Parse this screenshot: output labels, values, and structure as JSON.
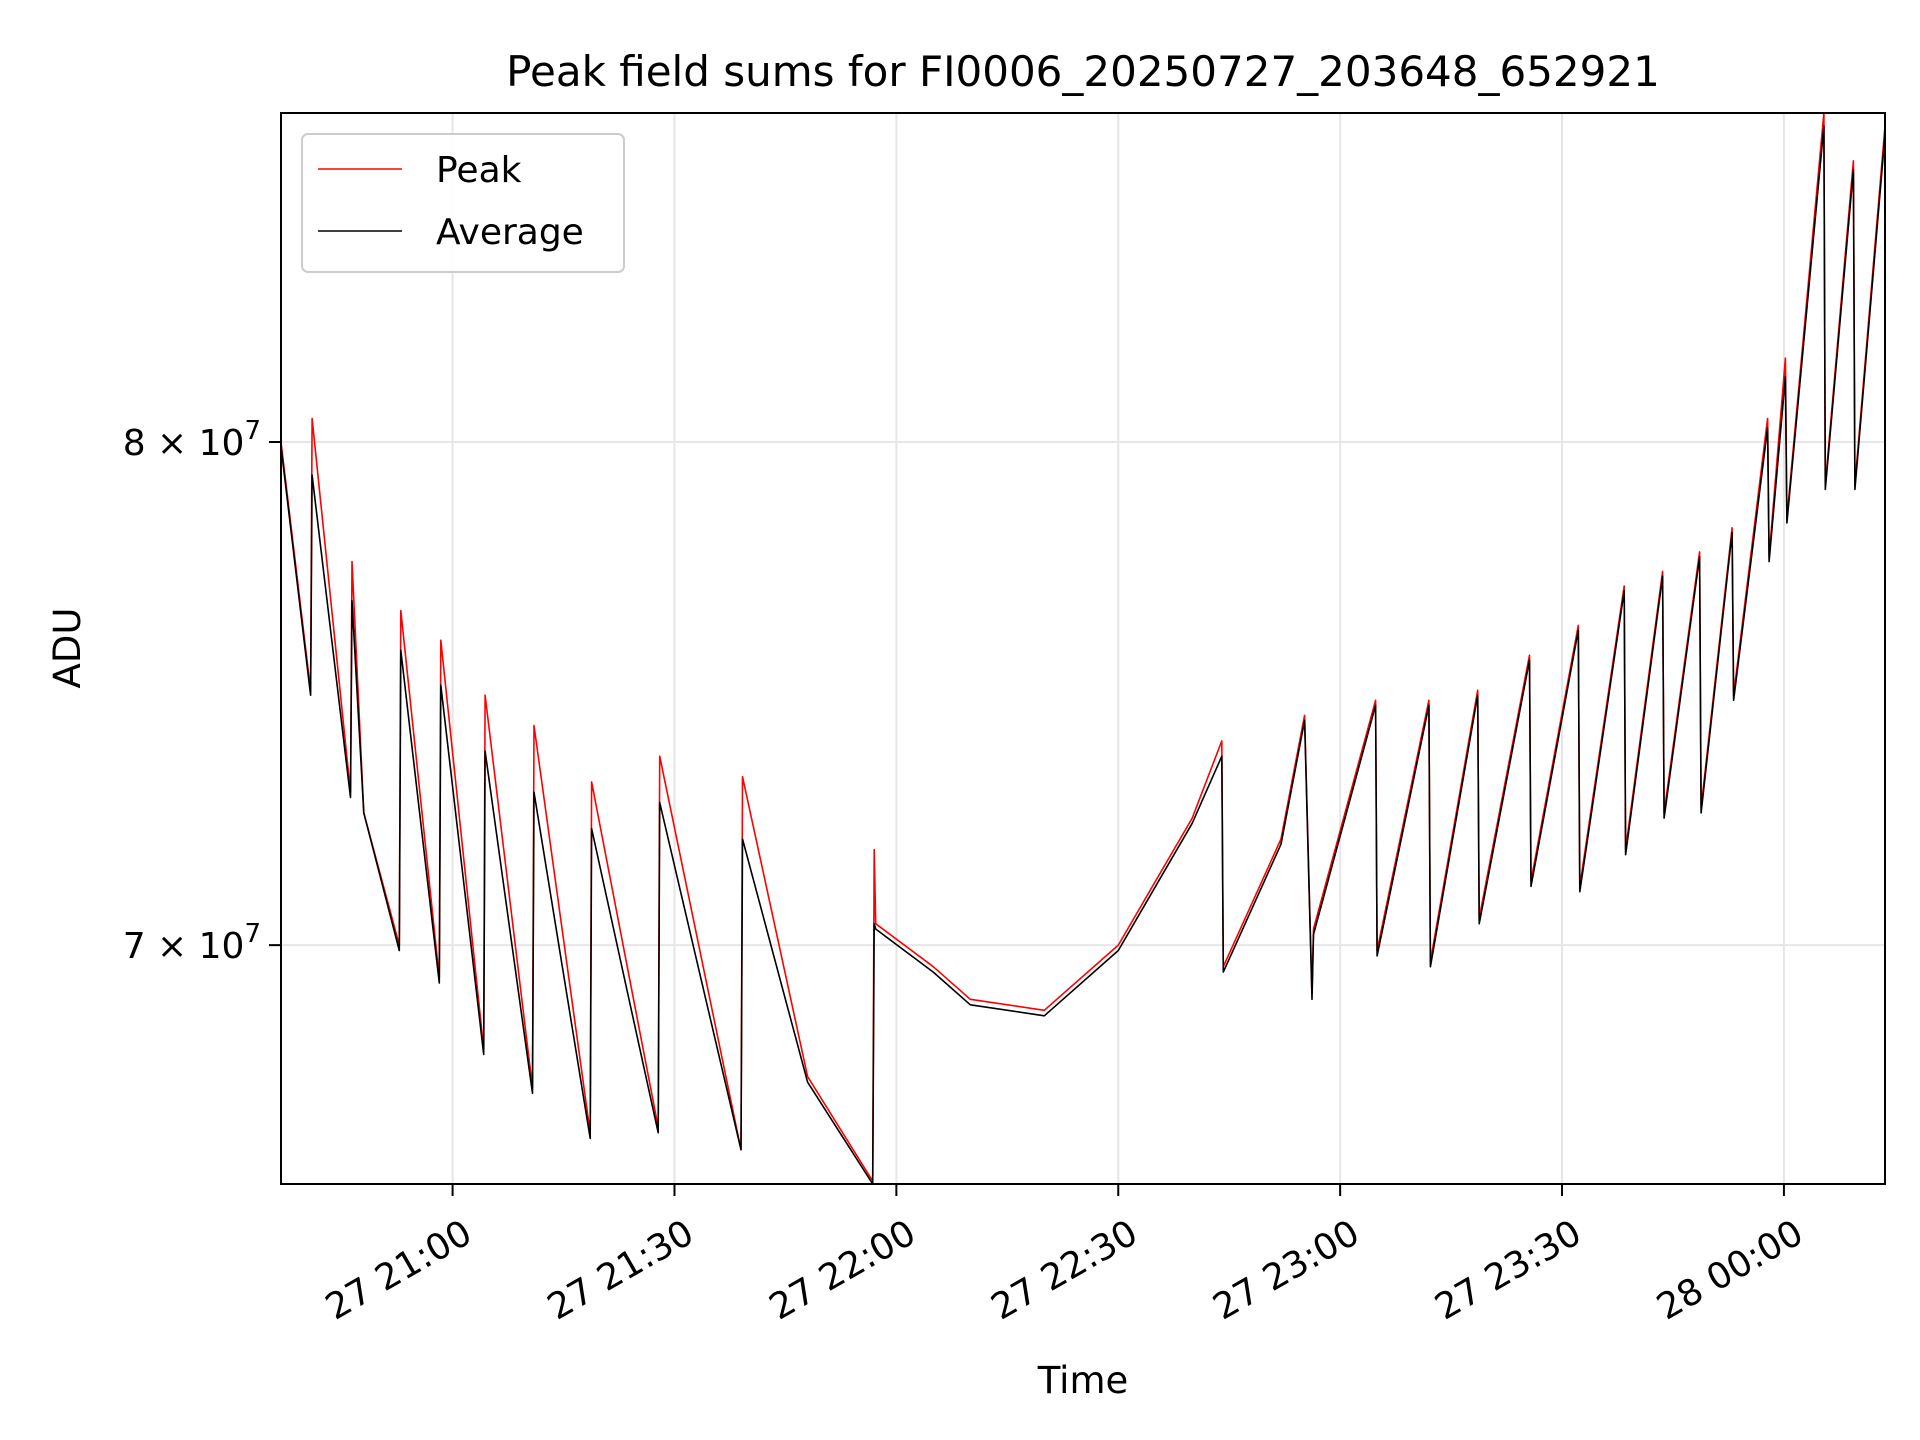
{
  "chart_data": {
    "type": "line",
    "title": "Peak field sums for FI0006_20250727_203648_652921",
    "xlabel": "Time",
    "ylabel": "ADU",
    "yscale": "log",
    "grid": true,
    "legend_position": "top-left",
    "xlim": [
      "2025-07-27 20:36:48",
      "2025-07-28 00:13:40"
    ],
    "ylim": [
      65700000,
      87300000
    ],
    "x_ticks": [
      {
        "value": "2025-07-27 21:00",
        "label": "27 21:00"
      },
      {
        "value": "2025-07-27 21:30",
        "label": "27 21:30"
      },
      {
        "value": "2025-07-27 22:00",
        "label": "27 22:00"
      },
      {
        "value": "2025-07-27 22:30",
        "label": "27 22:30"
      },
      {
        "value": "2025-07-27 23:00",
        "label": "27 23:00"
      },
      {
        "value": "2025-07-27 23:30",
        "label": "27 23:30"
      },
      {
        "value": "2025-07-28 00:00",
        "label": "28 00:00"
      }
    ],
    "y_ticks": [
      {
        "value": 70000000,
        "base": "7 × 10",
        "exp": "7"
      },
      {
        "value": 80000000,
        "base": "8 × 10",
        "exp": "7"
      }
    ],
    "legend": [
      "Peak",
      "Average"
    ],
    "series": [
      {
        "name": "Peak",
        "color": "#ff0000",
        "points": [
          [
            "2025-07-27 20:36:48",
            80000000
          ],
          [
            "2025-07-27 20:40:48",
            74900000
          ],
          [
            "2025-07-27 20:41:00",
            80500000
          ],
          [
            "2025-07-27 20:46:12",
            72900000
          ],
          [
            "2025-07-27 20:46:24",
            77500000
          ],
          [
            "2025-07-27 20:48:00",
            72500000
          ],
          [
            "2025-07-27 20:52:48",
            70000000
          ],
          [
            "2025-07-27 20:53:00",
            76500000
          ],
          [
            "2025-07-27 20:58:12",
            69400000
          ],
          [
            "2025-07-27 20:58:24",
            75900000
          ],
          [
            "2025-07-27 21:04:12",
            68100000
          ],
          [
            "2025-07-27 21:04:24",
            74800000
          ],
          [
            "2025-07-27 21:10:48",
            67400000
          ],
          [
            "2025-07-27 21:11:00",
            74200000
          ],
          [
            "2025-07-27 21:18:36",
            66600000
          ],
          [
            "2025-07-27 21:18:48",
            73100000
          ],
          [
            "2025-07-27 21:27:48",
            66700000
          ],
          [
            "2025-07-27 21:28:00",
            73600000
          ],
          [
            "2025-07-27 21:39:00",
            66300000
          ],
          [
            "2025-07-27 21:39:12",
            73200000
          ],
          [
            "2025-07-27 21:48:00",
            67600000
          ],
          [
            "2025-07-27 21:56:48",
            65750000
          ],
          [
            "2025-07-27 21:57:00",
            71800000
          ],
          [
            "2025-07-27 21:57:12",
            70400000
          ],
          [
            "2025-07-27 22:05:00",
            69600000
          ],
          [
            "2025-07-27 22:10:00",
            69000000
          ],
          [
            "2025-07-27 22:20:00",
            68800000
          ],
          [
            "2025-07-27 22:30:00",
            70000000
          ],
          [
            "2025-07-27 22:40:00",
            72400000
          ],
          [
            "2025-07-27 22:44:00",
            73900000
          ],
          [
            "2025-07-27 22:44:12",
            69600000
          ],
          [
            "2025-07-27 22:52:00",
            72000000
          ],
          [
            "2025-07-27 22:55:12",
            74400000
          ],
          [
            "2025-07-27 22:56:12",
            69100000
          ],
          [
            "2025-07-27 22:56:24",
            70300000
          ],
          [
            "2025-07-27 23:04:48",
            74700000
          ],
          [
            "2025-07-27 23:05:00",
            69900000
          ],
          [
            "2025-07-27 23:12:00",
            74700000
          ],
          [
            "2025-07-27 23:12:12",
            69700000
          ],
          [
            "2025-07-27 23:18:36",
            74900000
          ],
          [
            "2025-07-27 23:18:48",
            70500000
          ],
          [
            "2025-07-27 23:25:36",
            75600000
          ],
          [
            "2025-07-27 23:25:48",
            71200000
          ],
          [
            "2025-07-27 23:32:12",
            76200000
          ],
          [
            "2025-07-27 23:32:24",
            71100000
          ],
          [
            "2025-07-27 23:38:24",
            77000000
          ],
          [
            "2025-07-27 23:38:36",
            71800000
          ],
          [
            "2025-07-27 23:43:36",
            77300000
          ],
          [
            "2025-07-27 23:43:48",
            72500000
          ],
          [
            "2025-07-27 23:48:36",
            77700000
          ],
          [
            "2025-07-27 23:48:48",
            72600000
          ],
          [
            "2025-07-27 23:53:00",
            78200000
          ],
          [
            "2025-07-27 23:53:12",
            74800000
          ],
          [
            "2025-07-27 23:57:48",
            80500000
          ],
          [
            "2025-07-27 23:58:00",
            77600000
          ],
          [
            "2025-07-28 00:00:12",
            81800000
          ],
          [
            "2025-07-28 00:00:24",
            78400000
          ],
          [
            "2025-07-28 00:05:24",
            87300000
          ],
          [
            "2025-07-28 00:05:36",
            79100000
          ],
          [
            "2025-07-28 00:09:24",
            86200000
          ],
          [
            "2025-07-28 00:09:36",
            79100000
          ],
          [
            "2025-07-28 00:13:40",
            87000000
          ]
        ]
      },
      {
        "name": "Average",
        "color": "#000000",
        "points": [
          [
            "2025-07-27 20:36:48",
            79900000
          ],
          [
            "2025-07-27 20:40:48",
            74800000
          ],
          [
            "2025-07-27 20:41:00",
            79300000
          ],
          [
            "2025-07-27 20:46:12",
            72800000
          ],
          [
            "2025-07-27 20:46:24",
            76700000
          ],
          [
            "2025-07-27 20:48:00",
            72500000
          ],
          [
            "2025-07-27 20:52:48",
            69900000
          ],
          [
            "2025-07-27 20:53:00",
            75700000
          ],
          [
            "2025-07-27 20:58:12",
            69300000
          ],
          [
            "2025-07-27 20:58:24",
            75000000
          ],
          [
            "2025-07-27 21:04:12",
            68000000
          ],
          [
            "2025-07-27 21:04:24",
            73700000
          ],
          [
            "2025-07-27 21:10:48",
            67300000
          ],
          [
            "2025-07-27 21:11:00",
            72900000
          ],
          [
            "2025-07-27 21:18:36",
            66500000
          ],
          [
            "2025-07-27 21:18:48",
            72200000
          ],
          [
            "2025-07-27 21:27:48",
            66600000
          ],
          [
            "2025-07-27 21:28:00",
            72700000
          ],
          [
            "2025-07-27 21:39:00",
            66300000
          ],
          [
            "2025-07-27 21:39:12",
            72000000
          ],
          [
            "2025-07-27 21:48:00",
            67500000
          ],
          [
            "2025-07-27 21:56:48",
            65700000
          ],
          [
            "2025-07-27 21:57:00",
            70400000
          ],
          [
            "2025-07-27 21:57:12",
            70300000
          ],
          [
            "2025-07-27 22:05:00",
            69500000
          ],
          [
            "2025-07-27 22:10:00",
            68900000
          ],
          [
            "2025-07-27 22:20:00",
            68700000
          ],
          [
            "2025-07-27 22:30:00",
            69900000
          ],
          [
            "2025-07-27 22:40:00",
            72300000
          ],
          [
            "2025-07-27 22:44:00",
            73600000
          ],
          [
            "2025-07-27 22:44:12",
            69500000
          ],
          [
            "2025-07-27 22:52:00",
            71900000
          ],
          [
            "2025-07-27 22:55:12",
            74300000
          ],
          [
            "2025-07-27 22:56:12",
            69000000
          ],
          [
            "2025-07-27 22:56:24",
            70200000
          ],
          [
            "2025-07-27 23:04:48",
            74600000
          ],
          [
            "2025-07-27 23:05:00",
            69800000
          ],
          [
            "2025-07-27 23:12:00",
            74600000
          ],
          [
            "2025-07-27 23:12:12",
            69600000
          ],
          [
            "2025-07-27 23:18:36",
            74800000
          ],
          [
            "2025-07-27 23:18:48",
            70400000
          ],
          [
            "2025-07-27 23:25:36",
            75500000
          ],
          [
            "2025-07-27 23:25:48",
            71100000
          ],
          [
            "2025-07-27 23:32:12",
            76100000
          ],
          [
            "2025-07-27 23:32:24",
            71000000
          ],
          [
            "2025-07-27 23:38:24",
            76900000
          ],
          [
            "2025-07-27 23:38:36",
            71700000
          ],
          [
            "2025-07-27 23:43:36",
            77200000
          ],
          [
            "2025-07-27 23:43:48",
            72400000
          ],
          [
            "2025-07-27 23:48:36",
            77600000
          ],
          [
            "2025-07-27 23:48:48",
            72500000
          ],
          [
            "2025-07-27 23:53:00",
            78100000
          ],
          [
            "2025-07-27 23:53:12",
            74700000
          ],
          [
            "2025-07-27 23:57:48",
            80300000
          ],
          [
            "2025-07-27 23:58:00",
            77500000
          ],
          [
            "2025-07-28 00:00:12",
            81400000
          ],
          [
            "2025-07-28 00:00:24",
            78300000
          ],
          [
            "2025-07-28 00:05:24",
            87000000
          ],
          [
            "2025-07-28 00:05:36",
            79000000
          ],
          [
            "2025-07-28 00:09:24",
            86000000
          ],
          [
            "2025-07-28 00:09:36",
            79000000
          ],
          [
            "2025-07-28 00:13:40",
            86800000
          ]
        ]
      }
    ]
  }
}
